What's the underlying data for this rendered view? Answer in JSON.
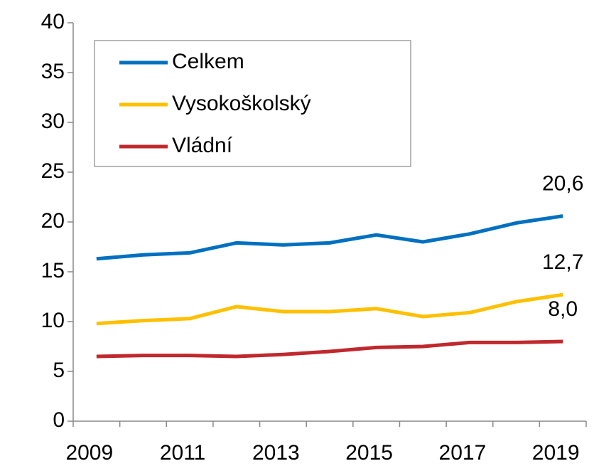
{
  "chart_data": {
    "type": "line",
    "categories": [
      "2009",
      null,
      "2011",
      null,
      "2013",
      null,
      "2015",
      null,
      "2017",
      null,
      "2019"
    ],
    "series": [
      {
        "name": "Celkem",
        "color": "#0070c0",
        "values": [
          16.3,
          16.7,
          16.9,
          17.9,
          17.7,
          17.9,
          18.7,
          18.0,
          18.8,
          19.9,
          20.6
        ],
        "value_labels": [
          null,
          null,
          null,
          null,
          null,
          null,
          null,
          null,
          null,
          null,
          "20,6"
        ]
      },
      {
        "name": "Vysokoškolský",
        "color": "#ffc000",
        "values": [
          9.8,
          10.1,
          10.3,
          11.5,
          11.0,
          11.0,
          11.3,
          10.5,
          10.9,
          12.0,
          12.7
        ],
        "value_labels": [
          null,
          null,
          null,
          null,
          null,
          null,
          null,
          null,
          null,
          null,
          "12,7"
        ]
      },
      {
        "name": "Vládní",
        "color": "#c0282d",
        "values": [
          6.5,
          6.6,
          6.6,
          6.5,
          6.7,
          7.0,
          7.4,
          7.5,
          7.9,
          7.9,
          8.0
        ],
        "value_labels": [
          null,
          null,
          null,
          null,
          null,
          null,
          null,
          null,
          null,
          null,
          "8,0"
        ]
      }
    ],
    "ylim": [
      0,
      40
    ],
    "yticks": [
      0,
      5,
      10,
      15,
      20,
      25,
      30,
      35,
      40
    ],
    "grid": false,
    "legend": "upper left"
  }
}
